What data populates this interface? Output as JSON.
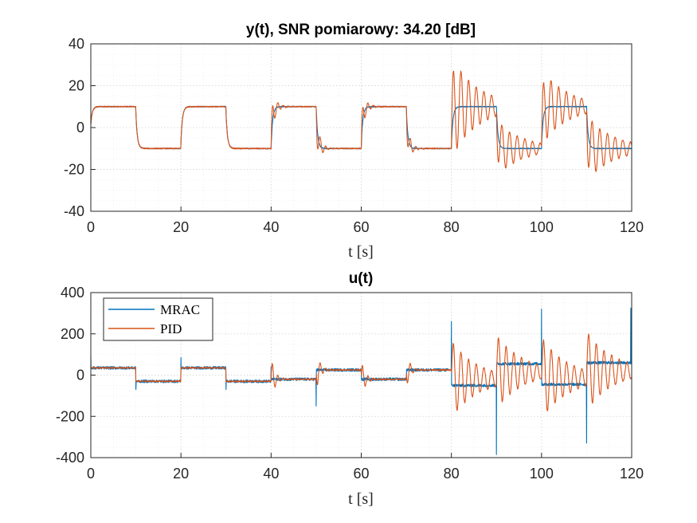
{
  "colors": {
    "mrac": "#0072BD",
    "pid": "#D95319"
  },
  "chart_data": [
    {
      "type": "line",
      "title": "y(t), SNR pomiarowy: 34.20 [dB]",
      "xlabel": "t [s]",
      "ylabel": "",
      "xlim": [
        0,
        120
      ],
      "ylim": [
        -40,
        40
      ],
      "xticks": [
        "0",
        "20",
        "40",
        "60",
        "80",
        "100",
        "120"
      ],
      "yticks": [
        "40",
        "20",
        "0",
        "-20",
        "-40"
      ],
      "xtick_values": [
        0,
        20,
        40,
        60,
        80,
        100,
        120
      ],
      "ytick_values": [
        40,
        20,
        0,
        -20,
        -40
      ],
      "grid": true,
      "reference": {
        "segments": [
          [
            0,
            10,
            10
          ],
          [
            10,
            20,
            -10
          ],
          [
            20,
            30,
            10
          ],
          [
            30,
            40,
            -10
          ],
          [
            40,
            50,
            10
          ],
          [
            50,
            60,
            -10
          ],
          [
            60,
            70,
            10
          ],
          [
            70,
            80,
            -10
          ],
          [
            80,
            90,
            10
          ],
          [
            90,
            100,
            -10
          ],
          [
            100,
            110,
            10
          ],
          [
            110,
            120,
            -10
          ]
        ]
      },
      "series": [
        {
          "name": "MRAC",
          "color_key": "mrac",
          "response": {
            "tau": 0.35,
            "noise": 0.4,
            "peak": 0
          }
        },
        {
          "name": "PID",
          "color_key": "pid",
          "response": {
            "tau": 0.35,
            "noise": 0.5,
            "peak": 0
          },
          "oscillation_events": [
            {
              "t0": 40,
              "amp": 11,
              "period": 1.2,
              "decay": 0.9,
              "sign": 1
            },
            {
              "t0": 50,
              "amp": 11,
              "period": 1.2,
              "decay": 0.9,
              "sign": -1
            },
            {
              "t0": 60,
              "amp": 10,
              "period": 1.2,
              "decay": 0.9,
              "sign": 1
            },
            {
              "t0": 70,
              "amp": 9,
              "period": 1.2,
              "decay": 0.9,
              "sign": -1
            },
            {
              "t0": 80,
              "amp": 24,
              "period": 1.7,
              "decay": 6,
              "sign": 1
            },
            {
              "t0": 90,
              "amp": 16,
              "period": 1.7,
              "decay": 6,
              "sign": -1
            },
            {
              "t0": 100,
              "amp": 20,
              "period": 1.7,
              "decay": 6,
              "sign": 1
            },
            {
              "t0": 110,
              "amp": 18,
              "period": 1.7,
              "decay": 6,
              "sign": -1
            }
          ]
        }
      ]
    },
    {
      "type": "line",
      "title": "u(t)",
      "xlabel": "t [s]",
      "ylabel": "",
      "xlim": [
        0,
        120
      ],
      "ylim": [
        -400,
        400
      ],
      "xticks": [
        "0",
        "20",
        "40",
        "60",
        "80",
        "100",
        "120"
      ],
      "yticks": [
        "400",
        "200",
        "0",
        "-200",
        "-400"
      ],
      "xtick_values": [
        0,
        20,
        40,
        60,
        80,
        100,
        120
      ],
      "ytick_values": [
        400,
        200,
        0,
        -200,
        -400
      ],
      "grid": true,
      "legend": {
        "placement": "top-left",
        "entries": [
          "MRAC",
          "PID"
        ]
      },
      "series": [
        {
          "name": "MRAC",
          "color_key": "mrac",
          "levels": [
            [
              0,
              10,
              35
            ],
            [
              10,
              20,
              -30
            ],
            [
              20,
              30,
              35
            ],
            [
              30,
              40,
              -30
            ],
            [
              40,
              50,
              -20
            ],
            [
              50,
              60,
              25
            ],
            [
              60,
              70,
              -20
            ],
            [
              70,
              80,
              25
            ],
            [
              80,
              90,
              -50
            ],
            [
              90,
              100,
              55
            ],
            [
              100,
              110,
              -45
            ],
            [
              110,
              120,
              60
            ]
          ],
          "noise": 7,
          "spikes": [
            [
              0,
              90
            ],
            [
              10,
              -70
            ],
            [
              20,
              85
            ],
            [
              30,
              -70
            ],
            [
              40,
              40
            ],
            [
              50,
              -150
            ],
            [
              80,
              260
            ],
            [
              90,
              -385
            ],
            [
              100,
              320
            ],
            [
              110,
              -330
            ],
            [
              119.8,
              325
            ]
          ]
        },
        {
          "name": "PID",
          "color_key": "pid",
          "levels": [
            [
              0,
              10,
              35
            ],
            [
              10,
              20,
              -30
            ],
            [
              20,
              30,
              35
            ],
            [
              30,
              40,
              -30
            ],
            [
              40,
              50,
              -20
            ],
            [
              50,
              60,
              25
            ],
            [
              60,
              70,
              -20
            ],
            [
              70,
              80,
              25
            ],
            [
              80,
              90,
              -20
            ],
            [
              90,
              100,
              15
            ],
            [
              100,
              110,
              -15
            ],
            [
              110,
              120,
              20
            ]
          ],
          "noise": 3,
          "oscillation_events": [
            {
              "t0": 40,
              "amp": 110,
              "period": 1.2,
              "decay": 0.8,
              "sign": 1
            },
            {
              "t0": 50,
              "amp": 100,
              "period": 1.2,
              "decay": 0.8,
              "sign": -1
            },
            {
              "t0": 60,
              "amp": 95,
              "period": 1.2,
              "decay": 0.8,
              "sign": 1
            },
            {
              "t0": 70,
              "amp": 90,
              "period": 1.2,
              "decay": 0.8,
              "sign": -1
            },
            {
              "t0": 80,
              "amp": 185,
              "period": 1.7,
              "decay": 6,
              "sign": 1
            },
            {
              "t0": 90,
              "amp": 150,
              "period": 1.7,
              "decay": 6,
              "sign": 1
            },
            {
              "t0": 100,
              "amp": 175,
              "period": 1.7,
              "decay": 6,
              "sign": 1
            },
            {
              "t0": 110,
              "amp": 165,
              "period": 1.7,
              "decay": 6,
              "sign": 1
            }
          ]
        }
      ]
    }
  ]
}
